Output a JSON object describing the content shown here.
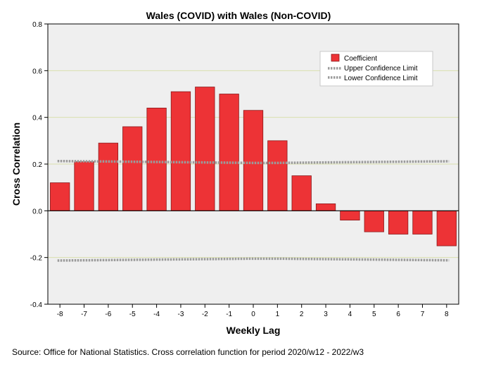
{
  "chart_data": {
    "type": "bar",
    "title": "Wales (COVID) with Wales (Non-COVID)",
    "xlabel": "Weekly Lag",
    "ylabel": "Cross Correlation",
    "categories": [
      "-8",
      "-7",
      "-6",
      "-5",
      "-4",
      "-3",
      "-2",
      "-1",
      "0",
      "1",
      "2",
      "3",
      "4",
      "5",
      "6",
      "7",
      "8"
    ],
    "series": [
      {
        "name": "Coefficient",
        "values": [
          0.12,
          0.21,
          0.29,
          0.36,
          0.44,
          0.51,
          0.53,
          0.5,
          0.43,
          0.3,
          0.15,
          0.03,
          -0.04,
          -0.09,
          -0.1,
          -0.1,
          -0.15
        ]
      },
      {
        "name": "Upper Confidence Limit",
        "values": [
          0.213,
          0.212,
          0.211,
          0.21,
          0.209,
          0.208,
          0.207,
          0.206,
          0.205,
          0.205,
          0.206,
          0.207,
          0.208,
          0.209,
          0.21,
          0.211,
          0.212
        ]
      },
      {
        "name": "Lower Confidence Limit",
        "values": [
          -0.213,
          -0.212,
          -0.211,
          -0.21,
          -0.209,
          -0.208,
          -0.207,
          -0.206,
          -0.205,
          -0.205,
          -0.206,
          -0.207,
          -0.208,
          -0.209,
          -0.21,
          -0.211,
          -0.212
        ]
      }
    ],
    "ylim": [
      -0.4,
      0.8
    ],
    "yticks": [
      "-0.4",
      "-0.2",
      "0.0",
      "0.2",
      "0.4",
      "0.6",
      "0.8"
    ],
    "grid": true,
    "legend": "top-right",
    "colors": {
      "bar": "#ed3336",
      "bar_edge": "#8b1a1c",
      "limit": "#9b9b9b",
      "grid": "#d9dfae",
      "plot_bg": "#efefef"
    }
  },
  "source_note": "Source: Office for National Statistics. Cross correlation function for period 2020/w12 - 2022/w3"
}
